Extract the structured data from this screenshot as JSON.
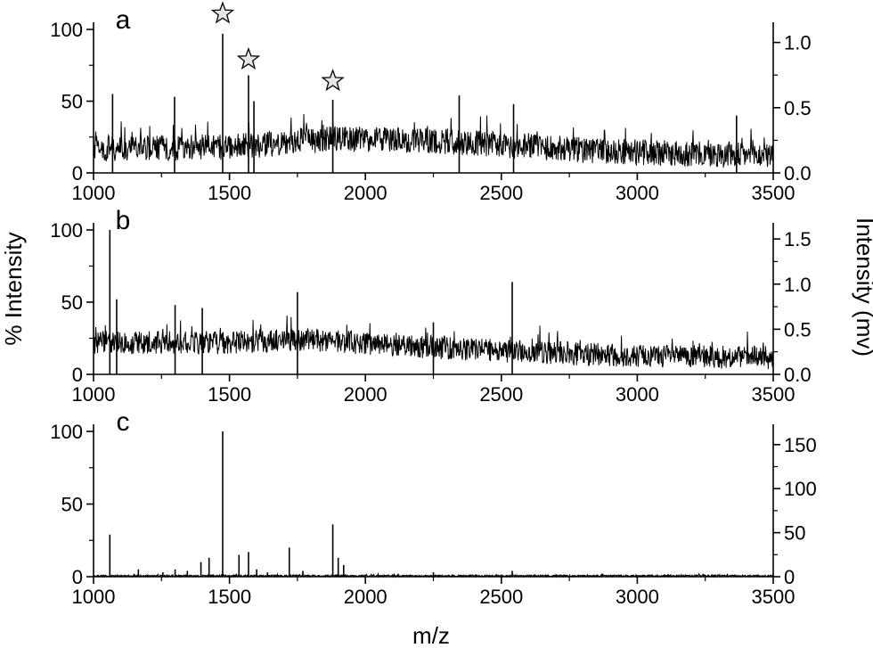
{
  "chart_data": {
    "type": "line",
    "xlabel": "m/z",
    "ylabel_left": "% Intensity",
    "ylabel_right": "Intensity (mv)",
    "xlim": [
      1000,
      3500
    ],
    "xticks": [
      "1000",
      "1500",
      "2000",
      "2500",
      "3000",
      "3500"
    ],
    "line_color": "#000000",
    "panels": [
      {
        "label": "a",
        "ylim_left": [
          0,
          100
        ],
        "yticks_left": [
          "0",
          "50",
          "100"
        ],
        "ylim_right": [
          0,
          1.1
        ],
        "yticks_right": [
          "0.0",
          "0.5",
          "1.0"
        ],
        "noise": {
          "baseline": [
            [
              1000,
              17
            ],
            [
              1500,
              18
            ],
            [
              1900,
              24
            ],
            [
              2300,
              22
            ],
            [
              2800,
              16
            ],
            [
              3200,
              13
            ],
            [
              3500,
              12
            ]
          ],
          "amplitude": 9
        },
        "peaks": [
          {
            "x": 1070,
            "y": 55
          },
          {
            "x": 1298,
            "y": 53
          },
          {
            "x": 1475,
            "y": 97
          },
          {
            "x": 1570,
            "y": 68
          },
          {
            "x": 1590,
            "y": 50
          },
          {
            "x": 1880,
            "y": 51
          },
          {
            "x": 2345,
            "y": 54
          },
          {
            "x": 2545,
            "y": 48
          },
          {
            "x": 3365,
            "y": 40
          }
        ],
        "stars": [
          {
            "x": 1475,
            "y": 111
          },
          {
            "x": 1570,
            "y": 79
          },
          {
            "x": 1880,
            "y": 64
          }
        ]
      },
      {
        "label": "b",
        "ylim_left": [
          0,
          100
        ],
        "yticks_left": [
          "0",
          "50",
          "100"
        ],
        "ylim_right": [
          0,
          1.6
        ],
        "yticks_right": [
          "0.0",
          "0.5",
          "1.0",
          "1.5"
        ],
        "noise": {
          "baseline": [
            [
              1000,
              22
            ],
            [
              1500,
              22
            ],
            [
              1800,
              24
            ],
            [
              2300,
              18
            ],
            [
              2800,
              14
            ],
            [
              3500,
              11
            ]
          ],
          "amplitude": 8
        },
        "peaks": [
          {
            "x": 1060,
            "y": 100
          },
          {
            "x": 1085,
            "y": 52
          },
          {
            "x": 1300,
            "y": 48
          },
          {
            "x": 1400,
            "y": 46
          },
          {
            "x": 1750,
            "y": 57
          },
          {
            "x": 2540,
            "y": 64
          },
          {
            "x": 2250,
            "y": 36
          }
        ]
      },
      {
        "label": "c",
        "ylim_left": [
          0,
          100
        ],
        "yticks_left": [
          "0",
          "50",
          "100"
        ],
        "ylim_right": [
          0,
          165
        ],
        "yticks_right": [
          "0",
          "50",
          "100",
          "150"
        ],
        "noise": {
          "baseline": [
            [
              1000,
              0.6
            ],
            [
              3500,
              0.6
            ]
          ],
          "amplitude": 0.6
        },
        "peaks": [
          {
            "x": 1060,
            "y": 29
          },
          {
            "x": 1165,
            "y": 5
          },
          {
            "x": 1255,
            "y": 3
          },
          {
            "x": 1300,
            "y": 5
          },
          {
            "x": 1345,
            "y": 4
          },
          {
            "x": 1395,
            "y": 10
          },
          {
            "x": 1425,
            "y": 13
          },
          {
            "x": 1475,
            "y": 100
          },
          {
            "x": 1535,
            "y": 15
          },
          {
            "x": 1570,
            "y": 17
          },
          {
            "x": 1600,
            "y": 5
          },
          {
            "x": 1640,
            "y": 3
          },
          {
            "x": 1720,
            "y": 20
          },
          {
            "x": 1770,
            "y": 4
          },
          {
            "x": 1880,
            "y": 36
          },
          {
            "x": 1900,
            "y": 13
          },
          {
            "x": 1920,
            "y": 8
          },
          {
            "x": 2250,
            "y": 3
          },
          {
            "x": 2540,
            "y": 4
          }
        ]
      }
    ]
  }
}
